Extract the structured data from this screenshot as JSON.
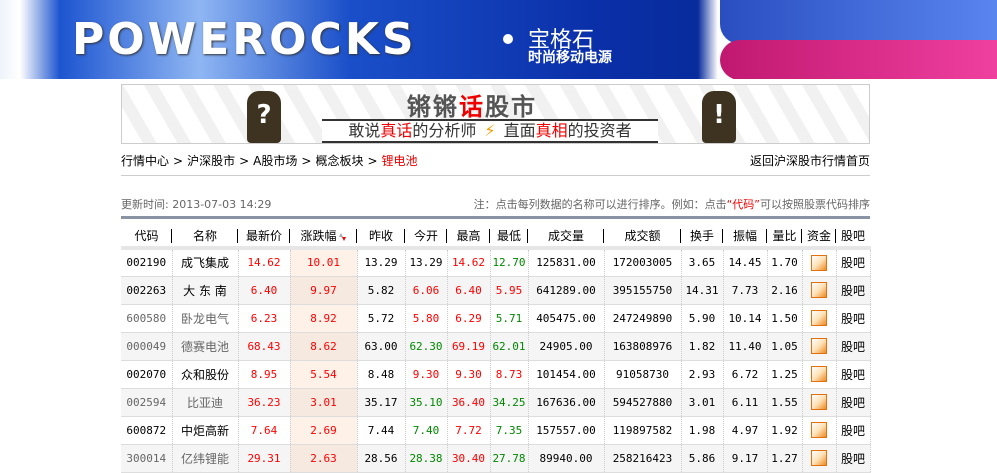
{
  "banner": {
    "logo": "POWEROCKS",
    "brand_cn": "宝格石",
    "slogan": "时尚移动电源"
  },
  "ad": {
    "title_a": "锵锵",
    "title_b": "话",
    "title_c": "股市",
    "line_a": "敢说",
    "line_b": "真话",
    "line_c": "的分析师",
    "line_d": "直面",
    "line_e": "真相",
    "line_f": "的投资者"
  },
  "breadcrumb": {
    "items": [
      "行情中心",
      "沪深股市",
      "A股市场",
      "概念板块"
    ],
    "current": "锂电池",
    "back": "返回沪深股市行情首页"
  },
  "update_time": "更新时间: 2013-07-03 14:29",
  "note": {
    "pre": "注：点击每列数据的名称可以进行排序。例如：点击",
    "link": "“代码”",
    "post": "可以按照股票代码排序"
  },
  "columns": [
    "代码",
    "名称",
    "最新价",
    "涨跌幅",
    "昨收",
    "今开",
    "最高",
    "最低",
    "成交量",
    "成交额",
    "换手",
    "振幅",
    "量比",
    "资金",
    "股吧"
  ],
  "colors": {
    "up": "#ff0000",
    "down": "#008800",
    "accent": "#e00000"
  },
  "rows": [
    {
      "code": "002190",
      "name": "成飞集成",
      "visited": false,
      "price": [
        "14.62",
        "up"
      ],
      "chg": "10.01",
      "prev": "13.29",
      "open": [
        "13.29",
        "eq"
      ],
      "high": [
        "14.62",
        "up"
      ],
      "low": [
        "12.70",
        "dn"
      ],
      "vol": "125831.00",
      "amt": "172003005",
      "turn": "3.65",
      "amp": "14.45",
      "vr": "1.70",
      "fund": "chart-icon",
      "guba": "股吧"
    },
    {
      "code": "002263",
      "name": "大 东 南",
      "visited": false,
      "price": [
        "6.40",
        "up"
      ],
      "chg": "9.97",
      "prev": "5.82",
      "open": [
        "6.06",
        "up"
      ],
      "high": [
        "6.40",
        "up"
      ],
      "low": [
        "5.95",
        "up"
      ],
      "vol": "641289.00",
      "amt": "395155750",
      "turn": "14.31",
      "amp": "7.73",
      "vr": "2.16",
      "fund": "chart-icon",
      "guba": "股吧"
    },
    {
      "code": "600580",
      "name": "卧龙电气",
      "visited": true,
      "price": [
        "6.23",
        "up"
      ],
      "chg": "8.92",
      "prev": "5.72",
      "open": [
        "5.80",
        "up"
      ],
      "high": [
        "6.29",
        "up"
      ],
      "low": [
        "5.71",
        "dn"
      ],
      "vol": "405475.00",
      "amt": "247249890",
      "turn": "5.90",
      "amp": "10.14",
      "vr": "1.50",
      "fund": "chart-icon",
      "guba": "股吧"
    },
    {
      "code": "000049",
      "name": "德赛电池",
      "visited": true,
      "price": [
        "68.43",
        "up"
      ],
      "chg": "8.62",
      "prev": "63.00",
      "open": [
        "62.30",
        "dn"
      ],
      "high": [
        "69.19",
        "up"
      ],
      "low": [
        "62.01",
        "dn"
      ],
      "vol": "24905.00",
      "amt": "163808976",
      "turn": "1.82",
      "amp": "11.40",
      "vr": "1.05",
      "fund": "chart-icon",
      "guba": "股吧"
    },
    {
      "code": "002070",
      "name": "众和股份",
      "visited": false,
      "price": [
        "8.95",
        "up"
      ],
      "chg": "5.54",
      "prev": "8.48",
      "open": [
        "9.30",
        "up"
      ],
      "high": [
        "9.30",
        "up"
      ],
      "low": [
        "8.73",
        "up"
      ],
      "vol": "101454.00",
      "amt": "91058730",
      "turn": "2.93",
      "amp": "6.72",
      "vr": "1.25",
      "fund": "chart-icon",
      "guba": "股吧"
    },
    {
      "code": "002594",
      "name": "比亚迪",
      "visited": true,
      "price": [
        "36.23",
        "up"
      ],
      "chg": "3.01",
      "prev": "35.17",
      "open": [
        "35.10",
        "dn"
      ],
      "high": [
        "36.40",
        "up"
      ],
      "low": [
        "34.25",
        "dn"
      ],
      "vol": "167636.00",
      "amt": "594527880",
      "turn": "3.01",
      "amp": "6.11",
      "vr": "1.55",
      "fund": "chart-icon",
      "guba": "股吧"
    },
    {
      "code": "600872",
      "name": "中炬高新",
      "visited": false,
      "price": [
        "7.64",
        "up"
      ],
      "chg": "2.69",
      "prev": "7.44",
      "open": [
        "7.40",
        "dn"
      ],
      "high": [
        "7.72",
        "up"
      ],
      "low": [
        "7.35",
        "dn"
      ],
      "vol": "157557.00",
      "amt": "119897582",
      "turn": "1.98",
      "amp": "4.97",
      "vr": "1.92",
      "fund": "chart-icon",
      "guba": "股吧"
    },
    {
      "code": "300014",
      "name": "亿纬锂能",
      "visited": true,
      "price": [
        "29.31",
        "up"
      ],
      "chg": "2.63",
      "prev": "28.56",
      "open": [
        "28.38",
        "dn"
      ],
      "high": [
        "30.40",
        "up"
      ],
      "low": [
        "27.78",
        "dn"
      ],
      "vol": "89940.00",
      "amt": "258216423",
      "turn": "5.86",
      "amp": "9.17",
      "vr": "1.27",
      "fund": "chart-icon",
      "guba": "股吧"
    }
  ]
}
